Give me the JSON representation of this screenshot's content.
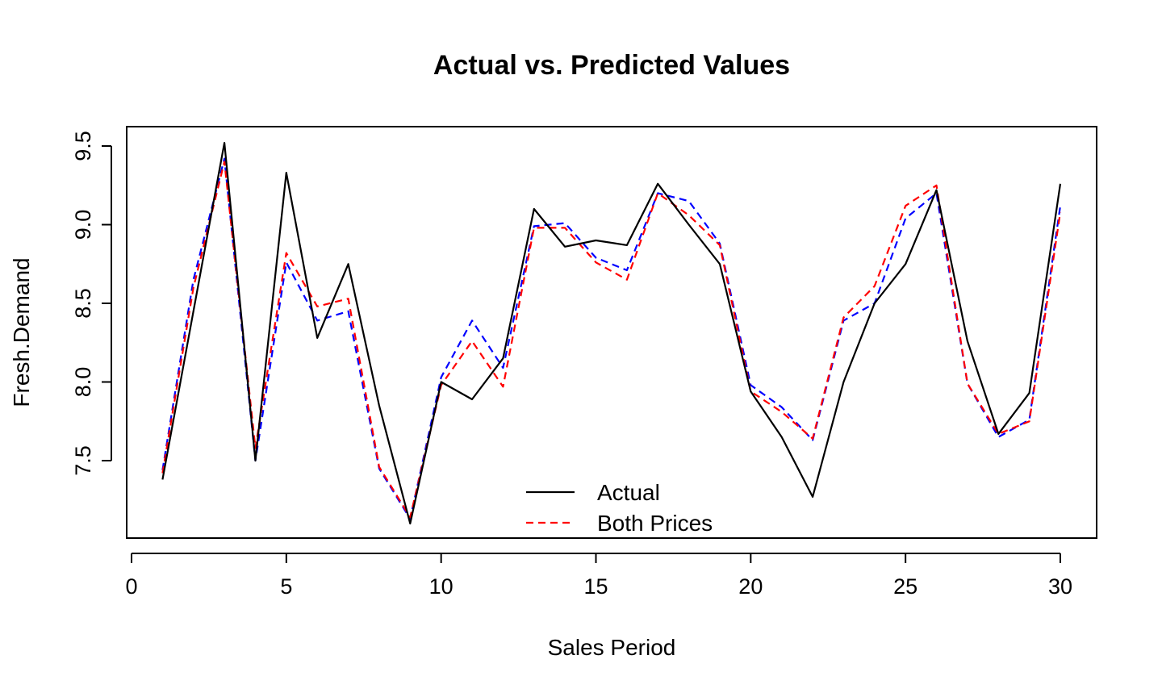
{
  "chart_data": {
    "type": "line",
    "title": "Actual vs. Predicted Values",
    "xlabel": "Sales Period",
    "ylabel": "Fresh.Demand",
    "xlim": [
      0,
      30
    ],
    "ylim": [
      7.05,
      9.57
    ],
    "x_ticks": [
      "0",
      "5",
      "10",
      "15",
      "20",
      "25",
      "30"
    ],
    "y_ticks": [
      "7.5",
      "8.0",
      "8.5",
      "9.0",
      "9.5"
    ],
    "x": [
      1,
      2,
      3,
      4,
      5,
      6,
      7,
      8,
      9,
      10,
      11,
      12,
      13,
      14,
      15,
      16,
      17,
      18,
      19,
      20,
      21,
      22,
      23,
      24,
      25,
      26,
      27,
      28,
      29,
      30
    ],
    "series": [
      {
        "name": "Actual",
        "color": "#000000",
        "dash": "solid",
        "values": [
          7.38,
          8.45,
          9.52,
          7.5,
          9.33,
          8.28,
          8.75,
          7.85,
          7.1,
          8.0,
          7.89,
          8.15,
          9.1,
          8.86,
          8.9,
          8.87,
          9.26,
          9.0,
          8.75,
          7.94,
          7.65,
          7.27,
          8.0,
          8.5,
          8.75,
          9.22,
          8.26,
          7.67,
          7.93,
          9.26
        ]
      },
      {
        "name": "Both Prices",
        "color": "#ff0000",
        "dash": "dashed",
        "values": [
          7.42,
          8.6,
          9.4,
          7.58,
          8.82,
          8.48,
          8.53,
          7.46,
          7.14,
          7.98,
          8.26,
          7.97,
          8.98,
          8.98,
          8.76,
          8.65,
          9.2,
          9.06,
          8.87,
          7.94,
          7.81,
          7.64,
          8.41,
          8.61,
          9.12,
          9.25,
          7.99,
          7.67,
          7.75,
          9.08
        ]
      },
      {
        "values": [
          7.44,
          8.65,
          9.42,
          7.5,
          8.76,
          8.39,
          8.45,
          7.45,
          7.13,
          8.03,
          8.39,
          8.09,
          8.99,
          9.01,
          8.79,
          8.71,
          9.2,
          9.15,
          8.88,
          7.98,
          7.84,
          7.63,
          8.39,
          8.5,
          9.04,
          9.2,
          7.99,
          7.65,
          7.76,
          9.12
        ],
        "color": "#0000ff",
        "dash": "dashed"
      }
    ],
    "legend": {
      "position": "bottom-center",
      "entries": [
        "Actual",
        "Both Prices"
      ]
    },
    "grid": false
  }
}
